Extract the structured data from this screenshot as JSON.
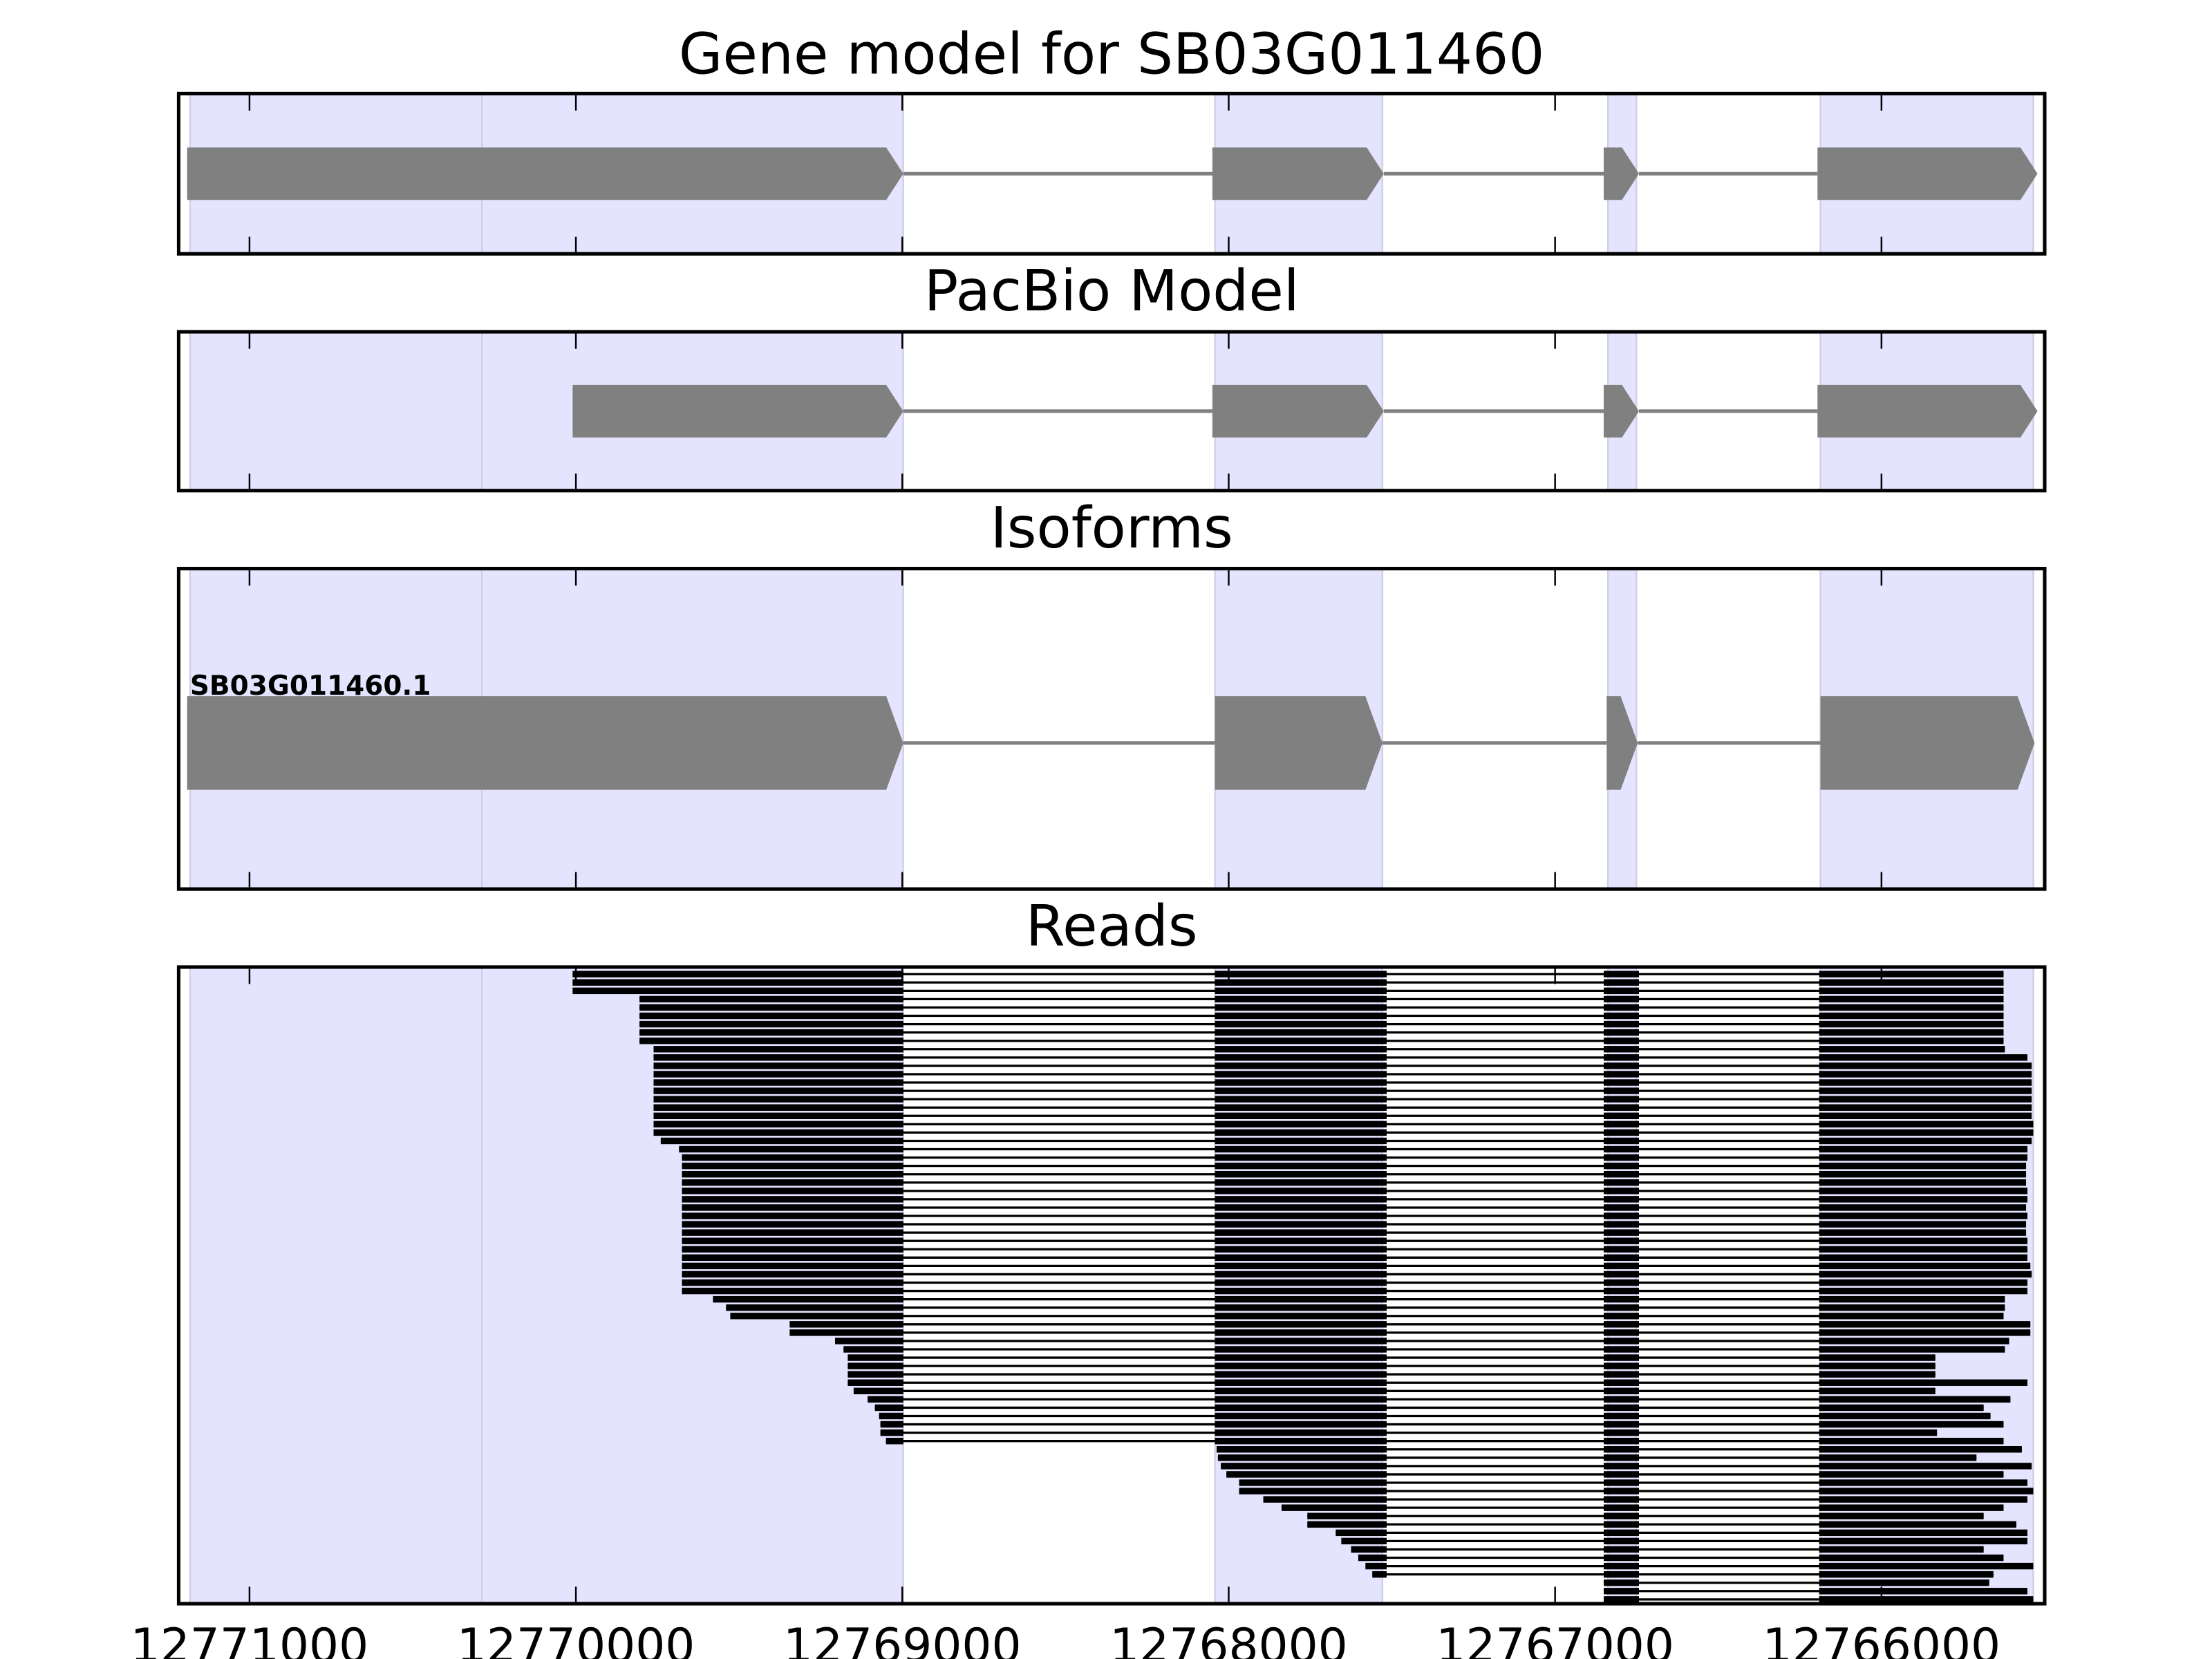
{
  "chart_data": {
    "type": "gene-structure",
    "xlim": [
      12771217,
      12765500
    ],
    "x_ticks": [
      12771000,
      12770000,
      12769000,
      12768000,
      12767000,
      12766000
    ],
    "x_tick_labels": [
      "12771000",
      "12770000",
      "12769000",
      "12768000",
      "12767000",
      "12766000"
    ],
    "colors": {
      "shade": "#e4e4ff",
      "shade_edge": "#cfd0e6",
      "exon": "#808080",
      "intron": "#808080",
      "read": "#000000"
    },
    "shaded_regions": [
      [
        12771182,
        12770288
      ],
      [
        12770288,
        12768997
      ],
      [
        12768042,
        12767529
      ],
      [
        12766838,
        12766751
      ],
      [
        12766187,
        12765535
      ]
    ],
    "panels": {
      "gene_model": {
        "title": "Gene model for SB03G011460",
        "exons": [
          [
            12771191,
            12768997
          ],
          [
            12768050,
            12767525
          ],
          [
            12766851,
            12766743
          ],
          [
            12766196,
            12765522
          ]
        ]
      },
      "pacbio": {
        "title": "PacBio Model",
        "exons": [
          [
            12770010,
            12768997
          ],
          [
            12768050,
            12767525
          ],
          [
            12766851,
            12766743
          ],
          [
            12766196,
            12765522
          ]
        ]
      },
      "isoforms": {
        "title": "Isoforms",
        "label": "SB03G011460.1",
        "exons": [
          [
            12771191,
            12768997
          ],
          [
            12768042,
            12767529
          ],
          [
            12766842,
            12766747
          ],
          [
            12766187,
            12765531
          ]
        ]
      },
      "reads": {
        "title": "Reads",
        "read_exons": [
          [
            null,
            12768997
          ],
          [
            12768042,
            12767516
          ],
          [
            12766851,
            12766743
          ],
          [
            12766191,
            null
          ]
        ],
        "reads": [
          [
            12770010,
            12765626
          ],
          [
            12770010,
            12765626
          ],
          [
            12770010,
            12765626
          ],
          [
            12769805,
            12765626
          ],
          [
            12769805,
            12765626
          ],
          [
            12769805,
            12765626
          ],
          [
            12769805,
            12765626
          ],
          [
            12769805,
            12765626
          ],
          [
            12769805,
            12765626
          ],
          [
            12769762,
            12765622
          ],
          [
            12769762,
            12765553
          ],
          [
            12769762,
            12765540
          ],
          [
            12769762,
            12765540
          ],
          [
            12769762,
            12765540
          ],
          [
            12769762,
            12765540
          ],
          [
            12769762,
            12765540
          ],
          [
            12769762,
            12765540
          ],
          [
            12769762,
            12765540
          ],
          [
            12769762,
            12765535
          ],
          [
            12769762,
            12765535
          ],
          [
            12769740,
            12765540
          ],
          [
            12769684,
            12765553
          ],
          [
            12769675,
            12765553
          ],
          [
            12769675,
            12765557
          ],
          [
            12769675,
            12765557
          ],
          [
            12769675,
            12765557
          ],
          [
            12769675,
            12765553
          ],
          [
            12769675,
            12765553
          ],
          [
            12769675,
            12765557
          ],
          [
            12769675,
            12765553
          ],
          [
            12769675,
            12765557
          ],
          [
            12769675,
            12765557
          ],
          [
            12769675,
            12765553
          ],
          [
            12769675,
            12765553
          ],
          [
            12769675,
            12765553
          ],
          [
            12769675,
            12765544
          ],
          [
            12769675,
            12765540
          ],
          [
            12769675,
            12765553
          ],
          [
            12769675,
            12765553
          ],
          [
            12769580,
            12765622
          ],
          [
            12769540,
            12765622
          ],
          [
            12769527,
            12765626
          ],
          [
            12769345,
            12765544
          ],
          [
            12769345,
            12765544
          ],
          [
            12769206,
            12765609
          ],
          [
            12769180,
            12765622
          ],
          [
            12769167,
            12765835
          ],
          [
            12769167,
            12765835
          ],
          [
            12769167,
            12765835
          ],
          [
            12769167,
            12765553
          ],
          [
            12769149,
            12765835
          ],
          [
            12769106,
            12765605
          ],
          [
            12769084,
            12765687
          ],
          [
            12769071,
            12765666
          ],
          [
            12769067,
            12765626
          ],
          [
            12769067,
            12765830
          ],
          [
            12769050,
            12765626
          ],
          [
            12768037,
            12765570
          ],
          [
            12768033,
            12765709
          ],
          [
            12768024,
            12765540
          ],
          [
            12768007,
            12765626
          ],
          [
            12767968,
            12765553
          ],
          [
            12767968,
            12765535
          ],
          [
            12767894,
            12765553
          ],
          [
            12767838,
            12765626
          ],
          [
            12767759,
            12765687
          ],
          [
            12767759,
            12765587
          ],
          [
            12767672,
            12765553
          ],
          [
            12767655,
            12765553
          ],
          [
            12767625,
            12765687
          ],
          [
            12767603,
            12765626
          ],
          [
            12767581,
            12765535
          ],
          [
            12767560,
            12765657
          ],
          [
            12766851,
            12765670
          ],
          [
            12766851,
            12765553
          ],
          [
            12766851,
            12765535
          ]
        ]
      }
    }
  }
}
